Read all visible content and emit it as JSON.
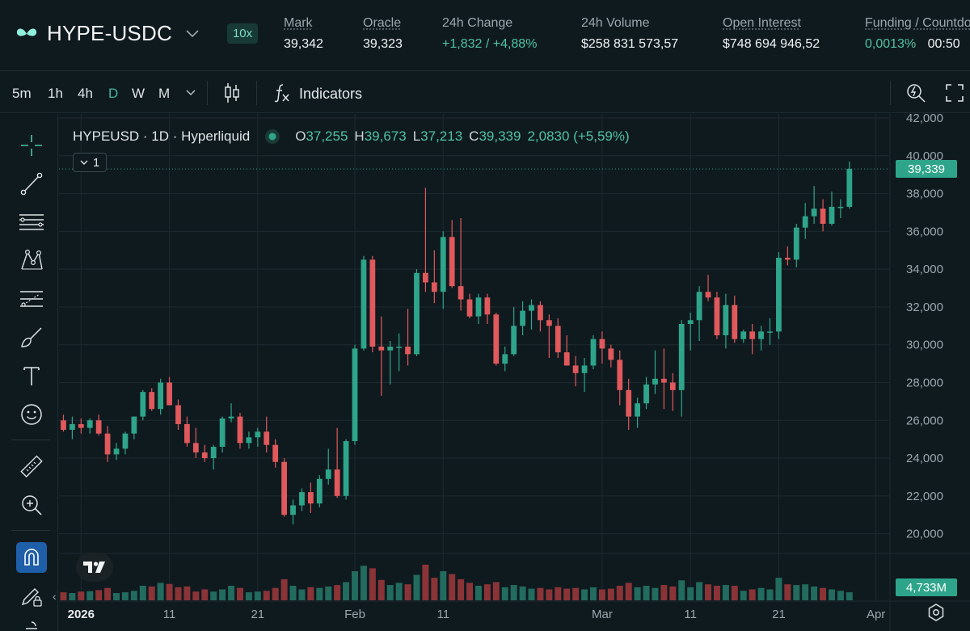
{
  "market": {
    "pair": "HYPE-USDC",
    "leverage": "10x",
    "stats": [
      {
        "label": "Mark",
        "value": "39,342",
        "tone": "plain"
      },
      {
        "label": "Oracle",
        "value": "39,323",
        "tone": "plain"
      },
      {
        "label": "24h Change",
        "value": "+1,832 / +4,88%",
        "tone": "green"
      },
      {
        "label": "24h Volume",
        "value": "$258 831 573,57",
        "tone": "plain"
      },
      {
        "label": "Open Interest",
        "value": "$748 694 946,52",
        "tone": "plain"
      },
      {
        "label": "Funding / Countdown",
        "value": "0,0013%",
        "value2": "00:50",
        "tone": "green"
      }
    ]
  },
  "toolbar": {
    "timeframes": [
      "5m",
      "1h",
      "4h",
      "D",
      "W",
      "M"
    ],
    "active_timeframe": "D",
    "indicators_label": "Indicators"
  },
  "legend": {
    "symbol": "HYPEUSD · 1D · Hyperliquid",
    "open_key": "O",
    "open": "37,255",
    "high_key": "H",
    "high": "39,673",
    "low_key": "L",
    "low": "37,213",
    "close_key": "C",
    "close": "39,339",
    "change": "2,0830 (+5,59%)",
    "collapse_count": "1"
  },
  "price_tag": "39,339",
  "volume_tag": "4,733M",
  "colors": {
    "up": "#2ea58a",
    "down": "#e0595c",
    "vol_up": "#226b5e",
    "vol_down": "#8a3438",
    "grid": "#1c2a30",
    "axis_text": "#9aa7ad"
  },
  "chart_data": {
    "type": "candlestick",
    "ylim": [
      19000,
      42000
    ],
    "y_ticks": [
      20000,
      22000,
      24000,
      26000,
      28000,
      30000,
      32000,
      34000,
      36000,
      38000,
      40000,
      42000
    ],
    "y_tick_labels": [
      "20,000",
      "22,000",
      "24,000",
      "26,000",
      "28,000",
      "30,000",
      "32,000",
      "34,000",
      "36,000",
      "38,000",
      "40,000",
      "42,000"
    ],
    "x_ticks": [
      {
        "label": "2026",
        "index": 2
      },
      {
        "label": "11",
        "index": 12
      },
      {
        "label": "21",
        "index": 22
      },
      {
        "label": "Feb",
        "index": 33
      },
      {
        "label": "11",
        "index": 43
      },
      {
        "label": "Mar",
        "index": 61
      },
      {
        "label": "11",
        "index": 71
      },
      {
        "label": "21",
        "index": 81
      },
      {
        "label": "Apr",
        "index": 92
      }
    ],
    "total_slots": 94,
    "candles": [
      [
        26000,
        26300,
        25400,
        25500,
        0.22
      ],
      [
        25500,
        26200,
        25000,
        25800,
        0.2
      ],
      [
        25800,
        26100,
        25300,
        25600,
        0.24
      ],
      [
        25600,
        26100,
        25300,
        26000,
        0.25
      ],
      [
        26000,
        26300,
        25200,
        25300,
        0.28
      ],
      [
        25300,
        25700,
        23800,
        24200,
        0.34
      ],
      [
        24200,
        24800,
        23900,
        24500,
        0.2
      ],
      [
        24500,
        25400,
        24200,
        25300,
        0.22
      ],
      [
        25300,
        26200,
        25000,
        26200,
        0.26
      ],
      [
        26200,
        27600,
        26000,
        27500,
        0.4
      ],
      [
        27500,
        27700,
        26500,
        26600,
        0.38
      ],
      [
        26600,
        28200,
        26300,
        28000,
        0.48
      ],
      [
        28000,
        28300,
        26800,
        26800,
        0.45
      ],
      [
        26800,
        27100,
        25500,
        25800,
        0.36
      ],
      [
        25800,
        26200,
        24600,
        24800,
        0.38
      ],
      [
        24800,
        25600,
        24000,
        24300,
        0.24
      ],
      [
        24300,
        24700,
        23800,
        24000,
        0.3
      ],
      [
        24000,
        24700,
        23400,
        24600,
        0.24
      ],
      [
        24600,
        26200,
        24300,
        26100,
        0.3
      ],
      [
        26100,
        26900,
        25900,
        26200,
        0.4
      ],
      [
        26200,
        26400,
        24500,
        24800,
        0.34
      ],
      [
        24800,
        25400,
        24500,
        25100,
        0.22
      ],
      [
        25100,
        25600,
        24600,
        25400,
        0.24
      ],
      [
        25400,
        26200,
        24300,
        24700,
        0.26
      ],
      [
        24700,
        25000,
        23500,
        23800,
        0.34
      ],
      [
        23800,
        24000,
        20900,
        21000,
        0.58
      ],
      [
        21000,
        21800,
        20500,
        21500,
        0.4
      ],
      [
        21500,
        22400,
        21200,
        22200,
        0.3
      ],
      [
        22200,
        22700,
        21100,
        21600,
        0.36
      ],
      [
        21600,
        23100,
        21400,
        22900,
        0.34
      ],
      [
        22900,
        24500,
        22600,
        23400,
        0.38
      ],
      [
        23400,
        25600,
        21900,
        22000,
        0.42
      ],
      [
        22000,
        25000,
        21800,
        24900,
        0.5
      ],
      [
        24900,
        30000,
        24700,
        29800,
        0.8
      ],
      [
        29800,
        34700,
        29700,
        34500,
        0.95
      ],
      [
        34500,
        34700,
        29600,
        29900,
        0.88
      ],
      [
        29900,
        31500,
        27300,
        29700,
        0.56
      ],
      [
        29700,
        30200,
        27900,
        29900,
        0.42
      ],
      [
        29900,
        30600,
        28600,
        29900,
        0.48
      ],
      [
        29900,
        31900,
        28900,
        29500,
        0.44
      ],
      [
        29500,
        34000,
        29400,
        33800,
        0.7
      ],
      [
        33800,
        38300,
        32800,
        33300,
        0.98
      ],
      [
        33300,
        35000,
        32200,
        32800,
        0.62
      ],
      [
        32800,
        36000,
        31900,
        35700,
        0.8
      ],
      [
        35700,
        36600,
        33000,
        33100,
        0.72
      ],
      [
        33100,
        36700,
        31800,
        32400,
        0.58
      ],
      [
        32400,
        32700,
        31400,
        31500,
        0.48
      ],
      [
        31500,
        32700,
        31100,
        32500,
        0.4
      ],
      [
        32500,
        32700,
        31100,
        31600,
        0.44
      ],
      [
        31600,
        31700,
        28900,
        29000,
        0.5
      ],
      [
        29000,
        29900,
        28600,
        29500,
        0.36
      ],
      [
        29500,
        32000,
        29400,
        31000,
        0.42
      ],
      [
        31000,
        32300,
        30500,
        31800,
        0.38
      ],
      [
        31800,
        32400,
        30800,
        32100,
        0.32
      ],
      [
        32100,
        32300,
        30700,
        31300,
        0.34
      ],
      [
        31300,
        31600,
        29300,
        31000,
        0.3
      ],
      [
        31000,
        31400,
        29300,
        29600,
        0.36
      ],
      [
        29600,
        30500,
        28900,
        28900,
        0.32
      ],
      [
        28900,
        29400,
        27800,
        28500,
        0.34
      ],
      [
        28500,
        29300,
        27500,
        28900,
        0.3
      ],
      [
        28900,
        30500,
        28700,
        30300,
        0.36
      ],
      [
        30300,
        30700,
        29000,
        29800,
        0.3
      ],
      [
        29800,
        30000,
        28800,
        29200,
        0.32
      ],
      [
        29200,
        29700,
        26800,
        27600,
        0.4
      ],
      [
        27600,
        28200,
        25500,
        26200,
        0.48
      ],
      [
        26200,
        27200,
        25600,
        26900,
        0.36
      ],
      [
        26900,
        28300,
        26600,
        27900,
        0.4
      ],
      [
        27900,
        29700,
        27400,
        28200,
        0.34
      ],
      [
        28200,
        29800,
        26600,
        28000,
        0.42
      ],
      [
        28000,
        28500,
        26500,
        27600,
        0.38
      ],
      [
        27600,
        31300,
        26200,
        31100,
        0.55
      ],
      [
        31100,
        31700,
        29700,
        31300,
        0.36
      ],
      [
        31300,
        33100,
        30200,
        32800,
        0.5
      ],
      [
        32800,
        33700,
        32300,
        32500,
        0.44
      ],
      [
        32500,
        32800,
        30300,
        30500,
        0.4
      ],
      [
        30500,
        32700,
        29800,
        32100,
        0.42
      ],
      [
        32100,
        32600,
        30100,
        30300,
        0.4
      ],
      [
        30300,
        30800,
        30100,
        30700,
        0.26
      ],
      [
        30700,
        31100,
        29500,
        30300,
        0.3
      ],
      [
        30300,
        31000,
        29700,
        30700,
        0.34
      ],
      [
        30700,
        31400,
        30000,
        30700,
        0.3
      ],
      [
        30700,
        34900,
        30300,
        34600,
        0.62
      ],
      [
        34600,
        35200,
        34200,
        34500,
        0.44
      ],
      [
        34500,
        36400,
        34100,
        36200,
        0.42
      ],
      [
        36200,
        37500,
        35600,
        36800,
        0.44
      ],
      [
        36800,
        38400,
        36400,
        37200,
        0.38
      ],
      [
        37200,
        37700,
        36000,
        36400,
        0.34
      ],
      [
        36400,
        38100,
        36300,
        37300,
        0.3
      ],
      [
        37300,
        37700,
        36700,
        37300,
        0.26
      ],
      [
        37300,
        39700,
        37200,
        39300,
        0.22
      ]
    ]
  }
}
